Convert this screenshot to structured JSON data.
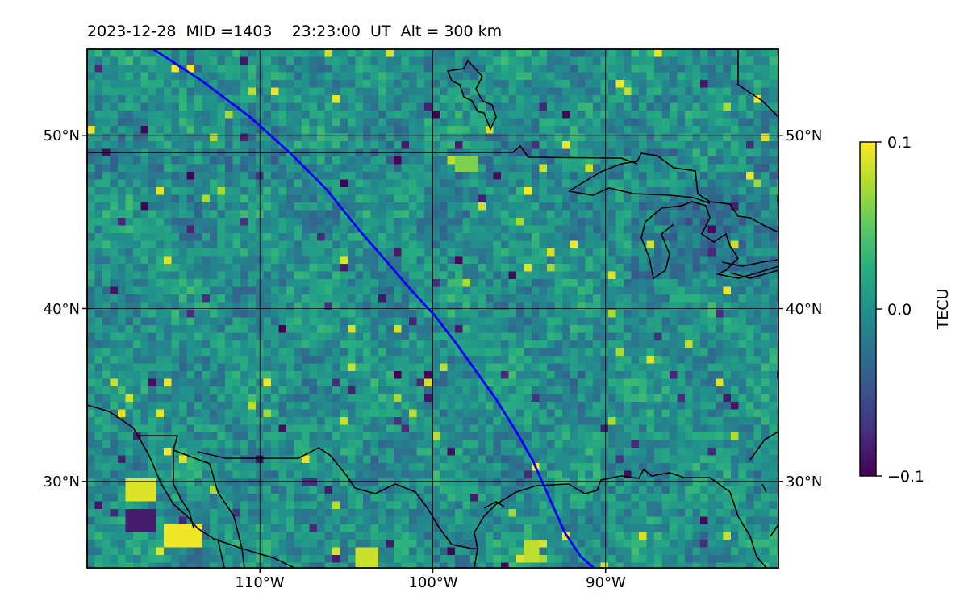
{
  "header": {
    "title": "2023-12-28  MID =1403    23:23:00  UT  Alt = 300 km"
  },
  "map": {
    "lon_range": [
      -120,
      -80
    ],
    "lat_range": [
      25,
      55
    ],
    "x_ticks": [
      {
        "lon": -110,
        "label": "110°W"
      },
      {
        "lon": -100,
        "label": "100°W"
      },
      {
        "lon": -90,
        "label": "90°W"
      }
    ],
    "y_ticks": [
      {
        "lat": 50,
        "label": "50°N"
      },
      {
        "lat": 40,
        "label": "40°N"
      },
      {
        "lat": 30,
        "label": "30°N"
      }
    ],
    "track_color": "#0000ff",
    "coast_color": "#000000"
  },
  "colorbar": {
    "label": "TECU",
    "ticks": [
      {
        "value": 0.1,
        "label": "0.1"
      },
      {
        "value": 0.0,
        "label": "0.0"
      },
      {
        "value": -0.1,
        "label": "−0.1"
      }
    ],
    "range": [
      -0.1,
      0.1
    ],
    "colormap": "viridis"
  }
}
